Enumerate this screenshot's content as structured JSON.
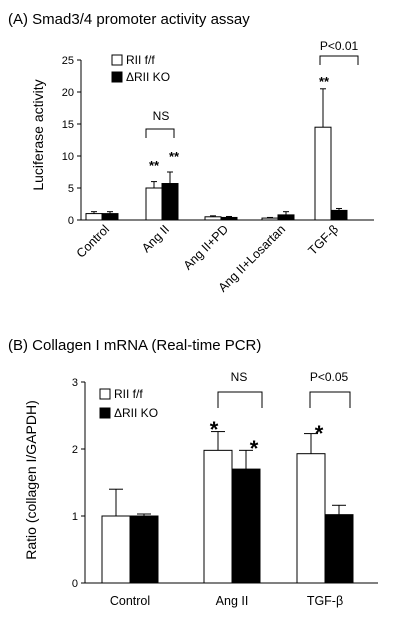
{
  "chart_data": [
    {
      "type": "bar",
      "title": "(A) Smad3/4 promoter activity assay",
      "ylabel": "Luciferase activity",
      "xlabel": "",
      "ylim": [
        0,
        25
      ],
      "yticks": [
        "0",
        "5",
        "10",
        "15",
        "20",
        "25"
      ],
      "categories": [
        "Control",
        "Ang II",
        "Ang II+PD",
        "Ang II+Losartan",
        "TGF-β"
      ],
      "legend_position": "top-left",
      "series": [
        {
          "name": "RII f/f",
          "color": "#ffffff",
          "values": [
            1.0,
            5.0,
            0.5,
            0.3,
            14.5
          ],
          "errors": [
            0.3,
            1.0,
            0.15,
            0.1,
            6.0
          ]
        },
        {
          "name": "ΔRII KO",
          "color": "#000000",
          "values": [
            1.0,
            5.7,
            0.4,
            0.8,
            1.5
          ],
          "errors": [
            0.3,
            1.8,
            0.15,
            0.5,
            0.3
          ]
        }
      ],
      "annotations": {
        "ns_label": "NS",
        "sig_label": "P<0.01",
        "stars_1": "**",
        "stars_2": "**",
        "stars_3": "**"
      },
      "grid": false
    },
    {
      "type": "bar",
      "title": "(B) Collagen I mRNA (Real-time PCR)",
      "ylabel": "Ratio (collagen I/GAPDH)",
      "xlabel": "",
      "ylim": [
        0,
        3
      ],
      "yticks": [
        "0",
        "1",
        "2",
        "3"
      ],
      "categories": [
        "Control",
        "Ang II",
        "TGF-β"
      ],
      "legend_position": "top-left",
      "series": [
        {
          "name": "RII f/f",
          "color": "#ffffff",
          "values": [
            1.0,
            1.98,
            1.93
          ],
          "errors": [
            0.4,
            0.28,
            0.3
          ]
        },
        {
          "name": "ΔRII KO",
          "color": "#000000",
          "values": [
            1.0,
            1.7,
            1.02
          ],
          "errors": [
            0.03,
            0.28,
            0.14
          ]
        }
      ],
      "annotations": {
        "ns_label": "NS",
        "sig_label": "P<0.05",
        "star_1": "*",
        "star_2": "*",
        "star_3": "*"
      },
      "grid": false
    }
  ]
}
